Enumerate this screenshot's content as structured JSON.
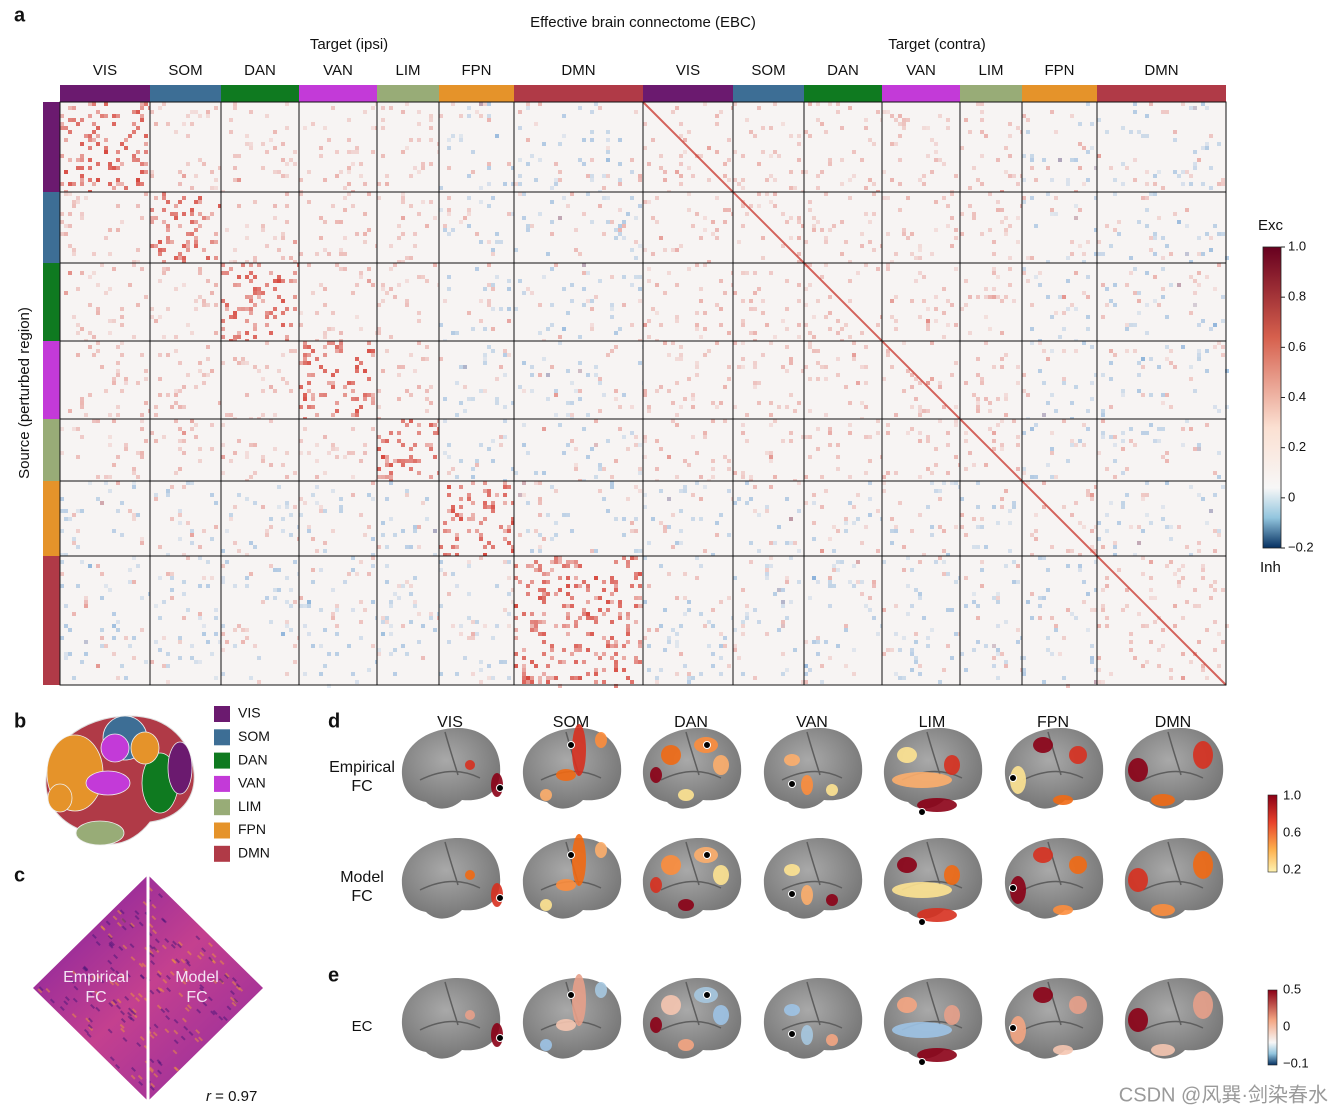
{
  "panel_a": {
    "label": "a",
    "title": "Effective brain connectome (EBC)",
    "target_ipsi": "Target (ipsi)",
    "target_contra": "Target (contra)",
    "y_label": "Source (perturbed region)",
    "colorbar": {
      "top_label": "Exc",
      "bottom_label": "Inh",
      "ticks": [
        "1.0",
        "0.8",
        "0.6",
        "0.4",
        "0.2",
        "0",
        "−0.2"
      ]
    }
  },
  "networks": [
    {
      "name": "VIS",
      "color": "#6b1a6f"
    },
    {
      "name": "SOM",
      "color": "#3d6e95"
    },
    {
      "name": "DAN",
      "color": "#0f7a20"
    },
    {
      "name": "VAN",
      "color": "#c33ad8"
    },
    {
      "name": "LIM",
      "color": "#98ac77"
    },
    {
      "name": "FPN",
      "color": "#e5932a"
    },
    {
      "name": "DMN",
      "color": "#b03a47"
    }
  ],
  "panel_b": {
    "label": "b"
  },
  "panel_c": {
    "label": "c",
    "left_lines": [
      "Empirical",
      "FC"
    ],
    "right_lines": [
      "Model",
      "FC"
    ],
    "r_var": "r",
    "r_value": " = 0.97"
  },
  "panel_d": {
    "label": "d",
    "rows": [
      [
        "Empirical",
        "FC"
      ],
      [
        "Model",
        "FC"
      ]
    ],
    "colorbar_ticks": [
      "1.0",
      "0.6",
      "0.2"
    ]
  },
  "panel_e": {
    "label": "e",
    "row": "EC",
    "colorbar_ticks": [
      "0.5",
      "0",
      "−0.1"
    ]
  },
  "watermark": "CSDN @风巽·剑染春水"
}
